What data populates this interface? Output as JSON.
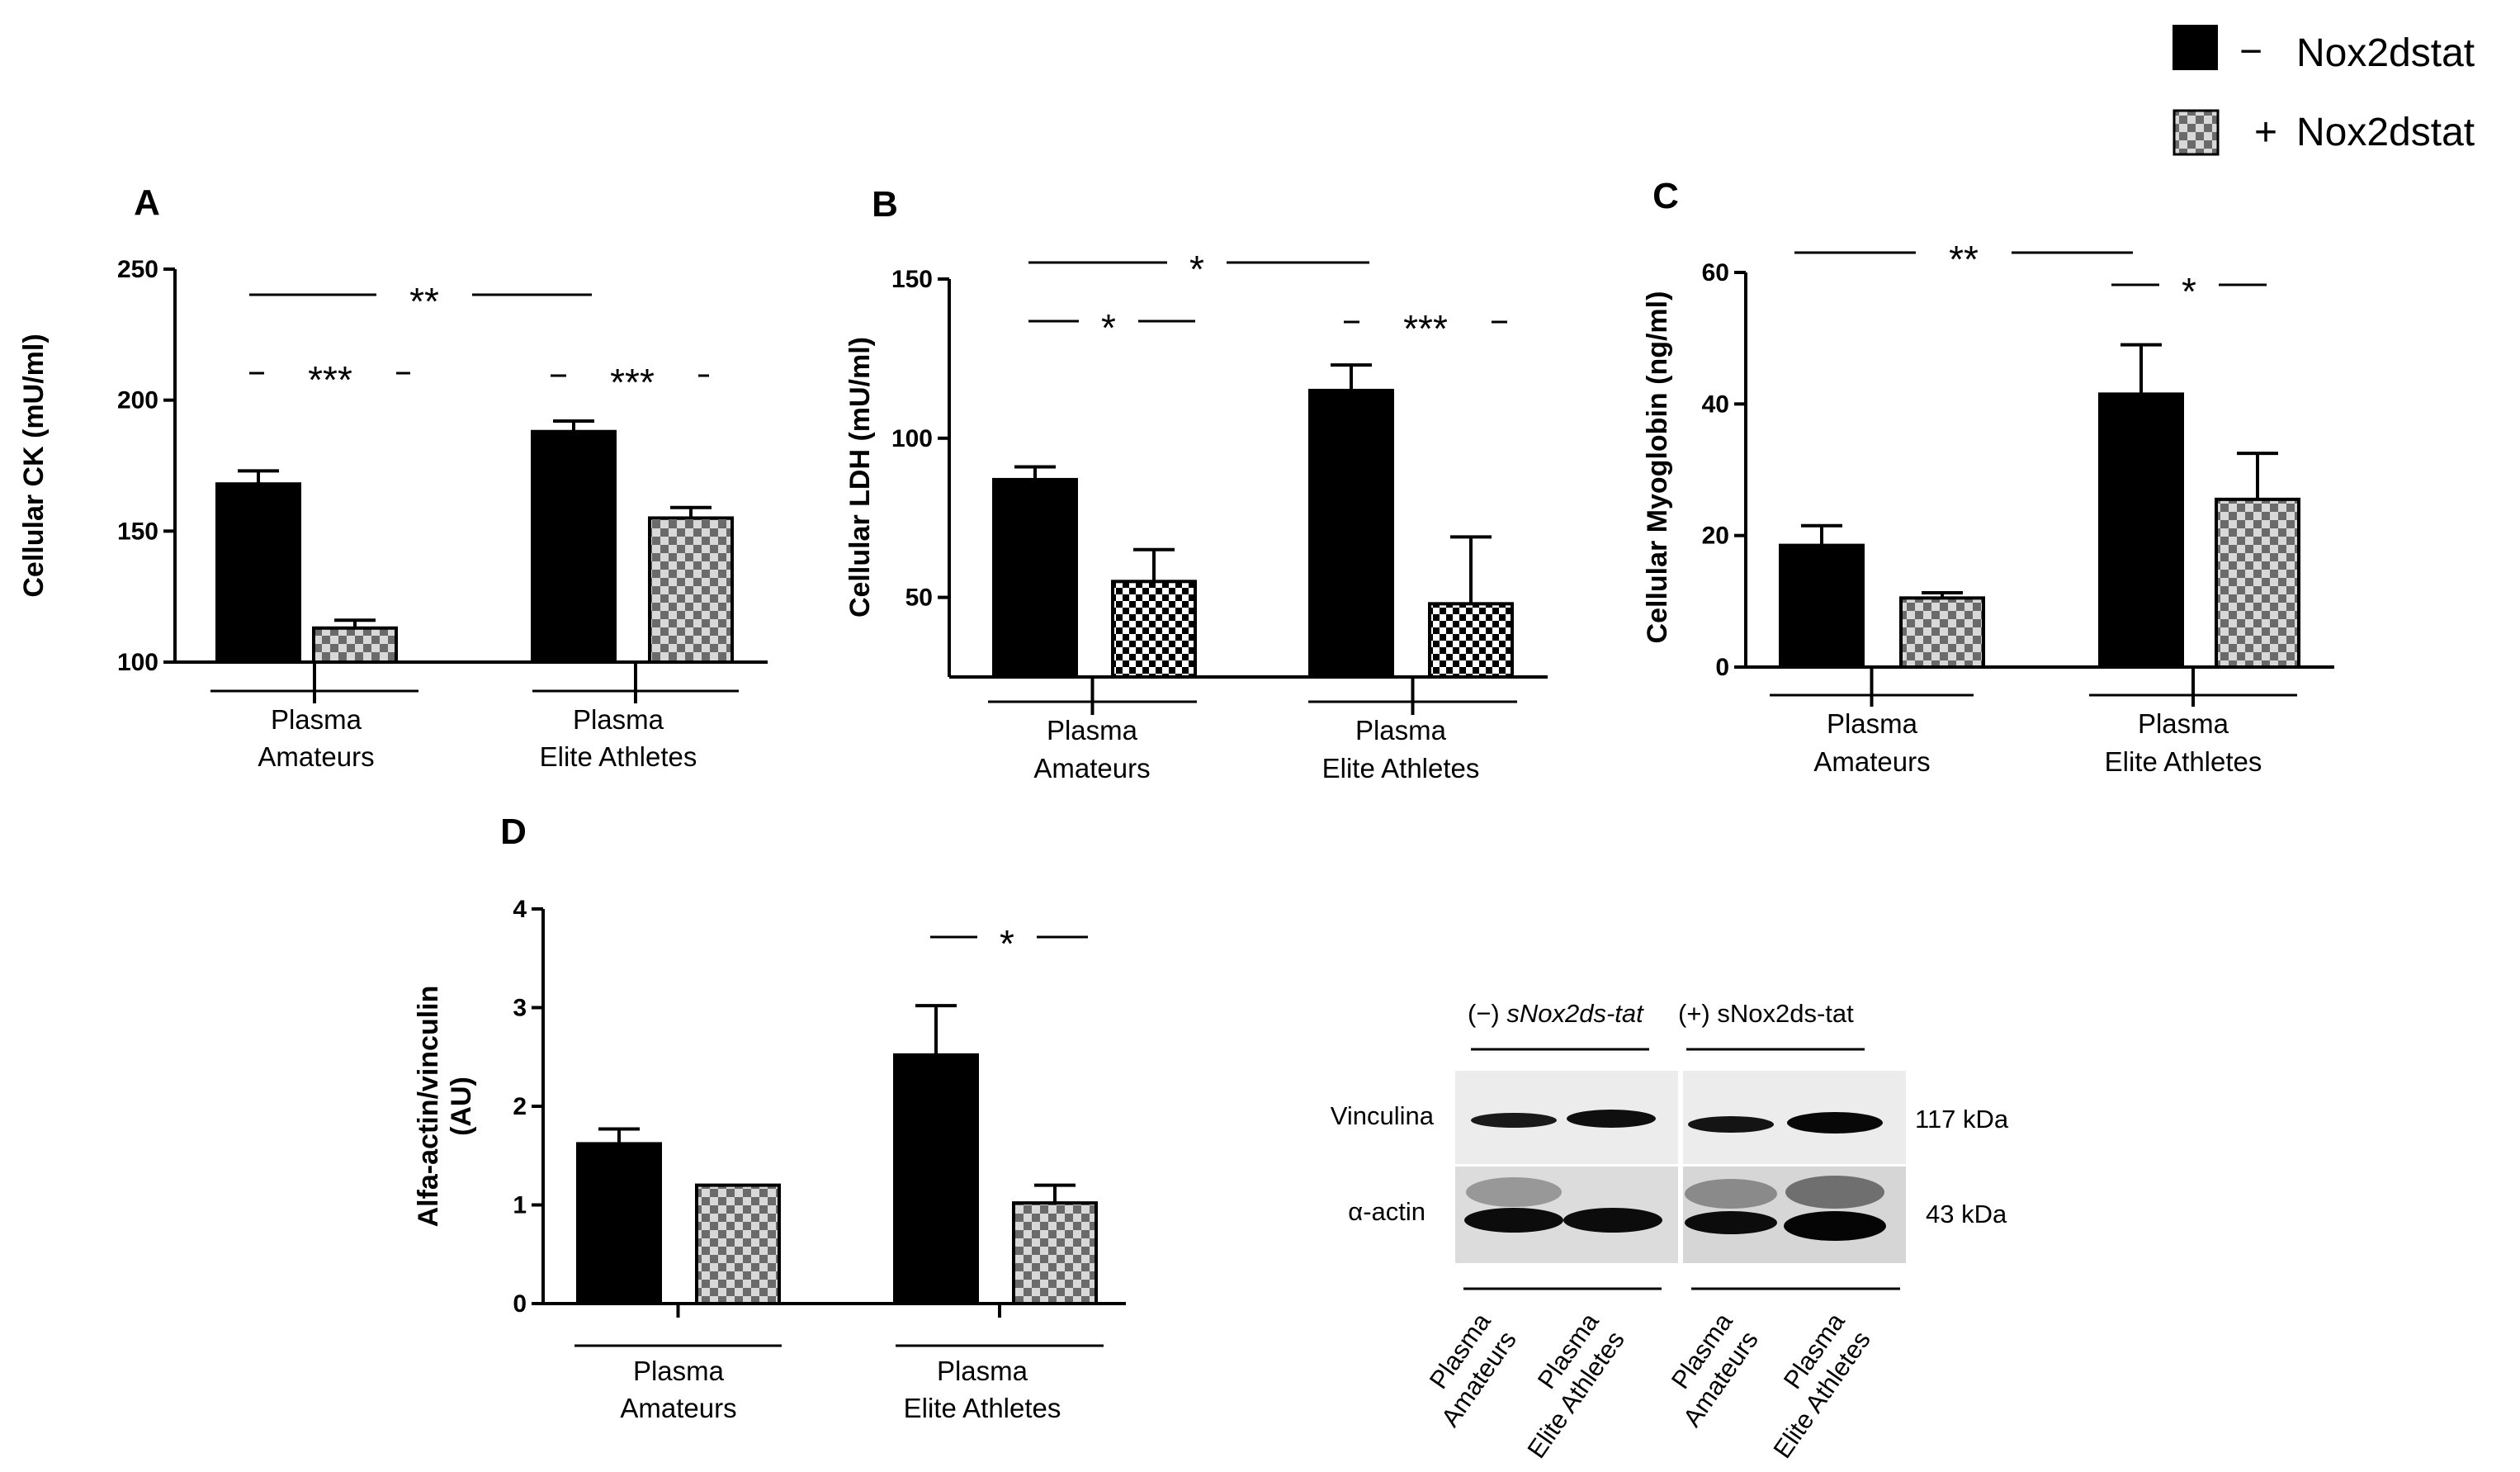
{
  "legend": {
    "items": [
      {
        "sign": "−",
        "label": "Nox2dstat",
        "pattern": "solid"
      },
      {
        "sign": "+",
        "label": "Nox2dstat",
        "pattern": "checker"
      }
    ]
  },
  "chart_data": [
    {
      "panel": "A",
      "type": "bar",
      "ylabel": "Cellular CK (mU/ml)",
      "ylim": [
        100,
        250
      ],
      "yticks": [
        100,
        150,
        200,
        250
      ],
      "groups": [
        {
          "label_lines": [
            "Plasma",
            "Amateurs"
          ],
          "values": [
            168,
            113
          ],
          "errors": [
            5,
            3
          ]
        },
        {
          "label_lines": [
            "Plasma",
            "Elite Athletes"
          ],
          "values": [
            188,
            155
          ],
          "errors": [
            4,
            4
          ]
        }
      ],
      "series": [
        {
          "pattern": "solid"
        },
        {
          "pattern": "checker"
        }
      ],
      "annotations": [
        {
          "text": "**",
          "from": [
            0,
            0
          ],
          "to": [
            1,
            0
          ]
        },
        {
          "text": "***",
          "from": [
            0,
            0
          ],
          "to": [
            0,
            1
          ]
        },
        {
          "text": "***",
          "from": [
            1,
            0
          ],
          "to": [
            1,
            1
          ]
        }
      ]
    },
    {
      "panel": "B",
      "type": "bar",
      "ylabel": "Cellular LDH (mU/ml)",
      "ylim": [
        25,
        150
      ],
      "yticks": [
        50,
        100,
        150
      ],
      "groups": [
        {
          "label_lines": [
            "Plasma",
            "Amateurs"
          ],
          "values": [
            87,
            55
          ],
          "errors": [
            4,
            10
          ]
        },
        {
          "label_lines": [
            "Plasma",
            "Elite Athletes"
          ],
          "values": [
            115,
            48
          ],
          "errors": [
            8,
            21
          ]
        }
      ],
      "series": [
        {
          "pattern": "solid"
        },
        {
          "pattern": "checker-dense"
        }
      ],
      "annotations": [
        {
          "text": "*",
          "from": [
            0,
            0
          ],
          "to": [
            1,
            0
          ]
        },
        {
          "text": "*",
          "from": [
            0,
            0
          ],
          "to": [
            0,
            1
          ]
        },
        {
          "text": "***",
          "from": [
            1,
            0
          ],
          "to": [
            1,
            1
          ]
        }
      ]
    },
    {
      "panel": "C",
      "type": "bar",
      "ylabel": "Cellular Myoglobin (ng/ml)",
      "ylim": [
        0,
        60
      ],
      "yticks": [
        0,
        20,
        40,
        60
      ],
      "groups": [
        {
          "label_lines": [
            "Plasma",
            "Amateurs"
          ],
          "values": [
            18.5,
            10.5
          ],
          "errors": [
            3,
            0.8
          ]
        },
        {
          "label_lines": [
            "Plasma",
            "Elite Athletes"
          ],
          "values": [
            41.5,
            25.5
          ],
          "errors": [
            7.5,
            7
          ]
        }
      ],
      "series": [
        {
          "pattern": "solid"
        },
        {
          "pattern": "checker"
        }
      ],
      "annotations": [
        {
          "text": "**",
          "from": [
            0,
            0
          ],
          "to": [
            1,
            0
          ]
        },
        {
          "text": "*",
          "from": [
            1,
            0
          ],
          "to": [
            1,
            1
          ]
        }
      ]
    },
    {
      "panel": "D",
      "type": "bar",
      "ylabel_lines": [
        "Alfa-actin/vinculin",
        "(AU)"
      ],
      "ylim": [
        0,
        4
      ],
      "yticks": [
        0,
        1,
        2,
        3,
        4
      ],
      "groups": [
        {
          "label_lines": [
            "Plasma",
            "Amateurs"
          ],
          "values": [
            1.62,
            1.2
          ],
          "errors": [
            0.15,
            0
          ]
        },
        {
          "label_lines": [
            "Plasma",
            "Elite Athletes"
          ],
          "values": [
            2.52,
            1.02
          ],
          "errors": [
            0.5,
            0.18
          ]
        }
      ],
      "series": [
        {
          "pattern": "solid"
        },
        {
          "pattern": "checker"
        }
      ],
      "annotations": [
        {
          "text": "*",
          "from": [
            1,
            0
          ],
          "to": [
            1,
            1
          ]
        }
      ]
    }
  ],
  "blot": {
    "header_minus": "(−) ",
    "header_minus_italic": "sNox2ds-tat",
    "header_plus": "(+) sNox2ds-tat",
    "rows": [
      {
        "label": "Vinculina",
        "size": "117 kDa"
      },
      {
        "label": "α-actin",
        "size": "43 kDa"
      }
    ],
    "lanes": [
      {
        "lines": [
          "Plasma",
          "Amateurs"
        ]
      },
      {
        "lines": [
          "Plasma",
          "Elite Athletes"
        ]
      },
      {
        "lines": [
          "Plasma",
          "Amateurs"
        ]
      },
      {
        "lines": [
          "Plasma",
          "Elite Athletes"
        ]
      }
    ]
  }
}
